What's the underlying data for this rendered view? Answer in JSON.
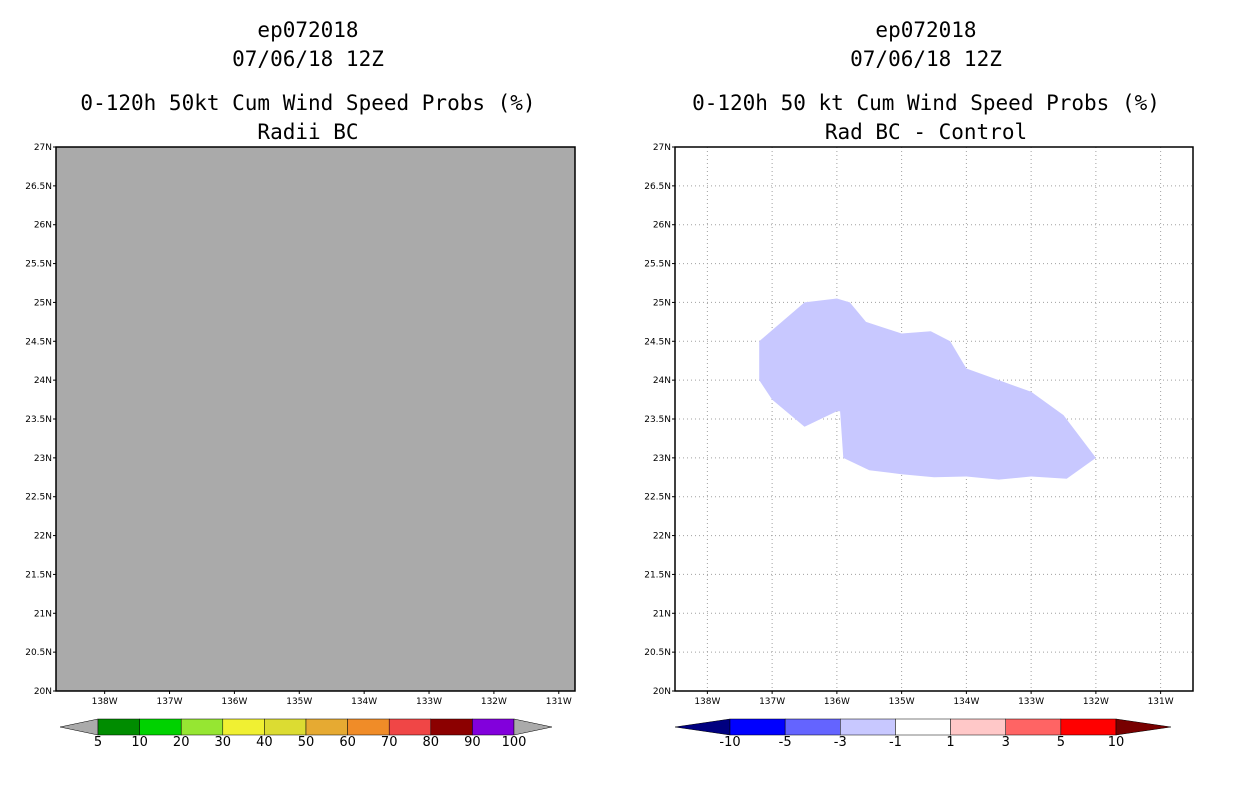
{
  "chart_data": [
    {
      "type": "heatmap",
      "title_lines": [
        "ep072018",
        "07/06/18 12Z",
        "0-120h 50kt Cum Wind Speed Probs (%)",
        "Radii BC"
      ],
      "xlabel": "",
      "ylabel": "",
      "xlim": [
        -138.75,
        -130.75
      ],
      "ylim": [
        20,
        27
      ],
      "x_ticks": [
        -138,
        -137,
        -136,
        -135,
        -134,
        -133,
        -132,
        -131
      ],
      "x_tick_labels": [
        "138W",
        "137W",
        "136W",
        "135W",
        "134W",
        "133W",
        "132W",
        "131W"
      ],
      "y_ticks": [
        20,
        20.5,
        21,
        21.5,
        22,
        22.5,
        23,
        23.5,
        24,
        24.5,
        25,
        25.5,
        26,
        26.5,
        27
      ],
      "y_tick_labels": [
        "20N",
        "20.5N",
        "21N",
        "21.5N",
        "22N",
        "22.5N",
        "23N",
        "23.5N",
        "24N",
        "24.5N",
        "25N",
        "25.5N",
        "26N",
        "26.5N",
        "27N"
      ],
      "grid": false,
      "fill_color": "#aaaaaa",
      "colorbar": {
        "labels": [
          "5",
          "10",
          "20",
          "30",
          "40",
          "50",
          "60",
          "70",
          "80",
          "90",
          "100"
        ],
        "colors": [
          "#aaaaaa",
          "#008c00",
          "#00d200",
          "#96e632",
          "#f0f032",
          "#dcdc32",
          "#e6aa32",
          "#f08c28",
          "#f04646",
          "#8c0000",
          "#8200dc",
          "#aaaaaa"
        ]
      }
    },
    {
      "type": "heatmap",
      "title_lines": [
        "ep072018",
        "07/06/18 12Z",
        "0-120h 50 kt Cum Wind Speed Probs (%)",
        "Rad BC - Control"
      ],
      "xlabel": "",
      "ylabel": "",
      "xlim": [
        -138.5,
        -130.5
      ],
      "ylim": [
        20,
        27
      ],
      "x_ticks": [
        -138,
        -137,
        -136,
        -135,
        -134,
        -133,
        -132,
        -131
      ],
      "x_tick_labels": [
        "138W",
        "137W",
        "136W",
        "135W",
        "134W",
        "133W",
        "132W",
        "131W"
      ],
      "y_ticks": [
        20,
        20.5,
        21,
        21.5,
        22,
        22.5,
        23,
        23.5,
        24,
        24.5,
        25,
        25.5,
        26,
        26.5,
        27
      ],
      "y_tick_labels": [
        "20N",
        "20.5N",
        "21N",
        "21.5N",
        "22N",
        "22.5N",
        "23N",
        "23.5N",
        "24N",
        "24.5N",
        "25N",
        "25.5N",
        "26N",
        "26.5N",
        "27N"
      ],
      "grid": true,
      "region": {
        "value_range": "-3 to -1",
        "color": "#c8c8ff",
        "lon": [
          -137.2,
          -136.5,
          -136.0,
          -135.8,
          -135.55,
          -135.0,
          -134.55,
          -134.25,
          -134.0,
          -133.0,
          -132.5,
          -132.0,
          -132.45,
          -133.0,
          -133.5,
          -134.0,
          -134.5,
          -135.0,
          -135.5,
          -135.9,
          -135.95,
          -136.0,
          -136.5,
          -137.0,
          -137.2
        ],
        "lat": [
          24.5,
          25.0,
          25.05,
          25.0,
          24.75,
          24.6,
          24.63,
          24.5,
          24.15,
          23.85,
          23.55,
          23.0,
          22.73,
          22.76,
          22.72,
          22.76,
          22.75,
          22.79,
          22.84,
          23.0,
          23.6,
          23.6,
          23.4,
          23.75,
          24.0
        ]
      },
      "colorbar": {
        "labels": [
          "-10",
          "-5",
          "-3",
          "-1",
          "1",
          "3",
          "5",
          "10"
        ],
        "colors": [
          "#000080",
          "#0000ff",
          "#6464ff",
          "#c8c8ff",
          "#ffffff",
          "#ffc8c8",
          "#ff6464",
          "#ff0000",
          "#780000"
        ]
      }
    }
  ]
}
